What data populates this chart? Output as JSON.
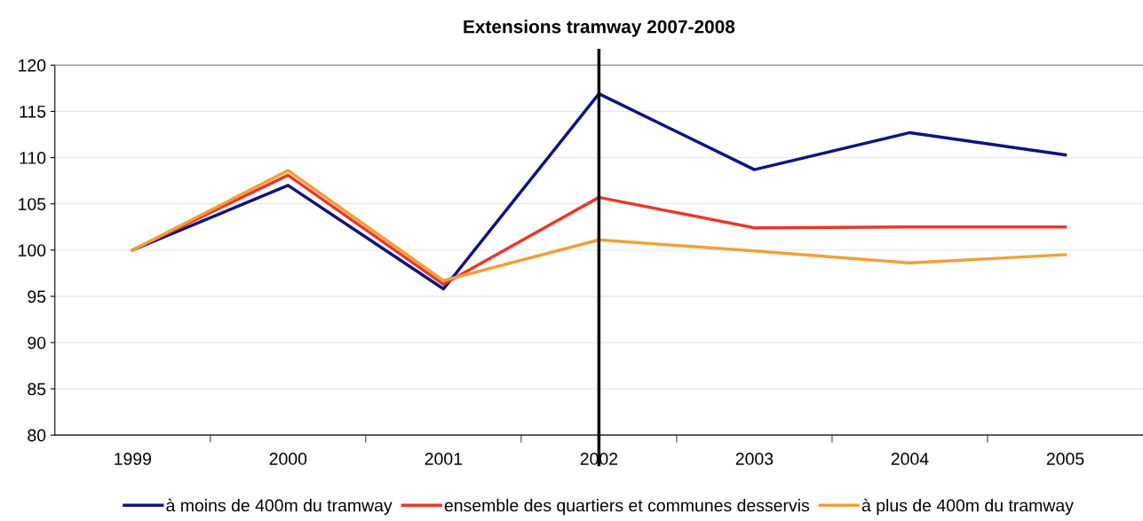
{
  "chart_data": {
    "type": "line",
    "title": "Extensions tramway 2007-2008",
    "categories": [
      "1999",
      "2000",
      "2001",
      "2002",
      "2003",
      "2004",
      "2005"
    ],
    "series": [
      {
        "name": "à moins de 400m du tramway",
        "color": "#0f1381",
        "values": [
          100,
          107.0,
          95.8,
          116.9,
          108.7,
          112.7,
          110.3
        ]
      },
      {
        "name": "ensemble des quartiers et communes desservis",
        "color": "#e8392b",
        "values": [
          100,
          108.1,
          96.3,
          105.7,
          102.4,
          102.5,
          102.5
        ]
      },
      {
        "name": "à plus de 400m du tramway",
        "color": "#f0a03a",
        "values": [
          100,
          108.6,
          96.7,
          101.1,
          99.9,
          98.6,
          99.5
        ]
      }
    ],
    "ylim": [
      80,
      120
    ],
    "yticks": [
      80,
      85,
      90,
      95,
      100,
      105,
      110,
      115,
      120
    ],
    "ref_lines": [
      {
        "axis": "x",
        "value": "2002",
        "color": "#000000"
      }
    ],
    "grid": "y",
    "legend": "bottom",
    "marker": "none",
    "line_style": "solid"
  }
}
